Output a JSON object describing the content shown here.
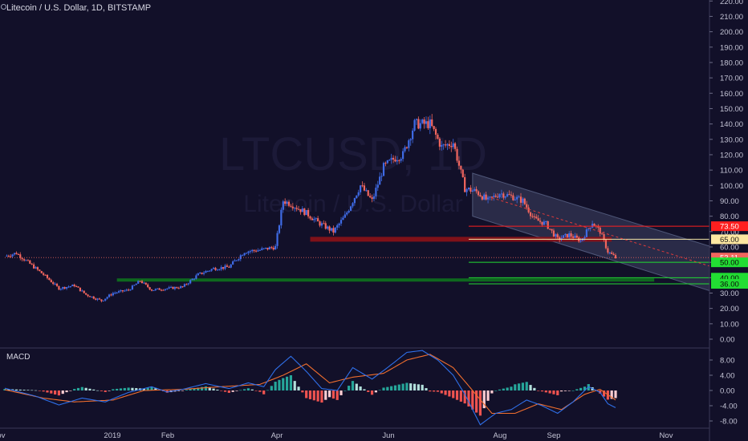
{
  "header": {
    "title": "Litecoin / U.S. Dollar, 1D, BITSTAMP",
    "watermark_symbol": "LTCUSD, 1D",
    "watermark_name": "Litecoin / U.S. Dollar"
  },
  "macd_label": "MACD",
  "colors": {
    "background": "#121029",
    "up_candle": "#3f6be6",
    "down_candle": "#f2665e",
    "resistance": "#ff1f1f",
    "support": "#22dd33",
    "highlight_line": "#f5e6a8",
    "channel": "#7f8fb8",
    "macd_line": "#2f6fe8",
    "signal_line": "#f06e2e"
  },
  "chart_data": [
    {
      "type": "candlestick",
      "title": "Litecoin / U.S. Dollar, 1D, BITSTAMP",
      "x_ticks": [
        "Nov",
        "2019",
        "Feb",
        "Apr",
        "Jun",
        "Aug",
        "Sep",
        "Nov"
      ],
      "y_ticks": [
        "220.00",
        "210.00",
        "200.00",
        "190.00",
        "180.00",
        "170.00",
        "160.00",
        "150.00",
        "140.00",
        "130.00",
        "120.00",
        "110.00",
        "100.00",
        "90.00",
        "80.00",
        "70.00",
        "60.00",
        "50.00",
        "40.00",
        "30.00",
        "20.00",
        "10.00",
        "0.00"
      ],
      "ylim": [
        -4,
        223
      ],
      "grid": false,
      "close_path": [
        {
          "t": 0,
          "v": 54
        },
        {
          "t": 3,
          "v": 56
        },
        {
          "t": 6,
          "v": 50
        },
        {
          "t": 10,
          "v": 42
        },
        {
          "t": 14,
          "v": 33
        },
        {
          "t": 18,
          "v": 35
        },
        {
          "t": 21,
          "v": 29
        },
        {
          "t": 25,
          "v": 25
        },
        {
          "t": 28,
          "v": 30
        },
        {
          "t": 32,
          "v": 32
        },
        {
          "t": 35,
          "v": 38
        },
        {
          "t": 38,
          "v": 32
        },
        {
          "t": 42,
          "v": 33
        },
        {
          "t": 46,
          "v": 34
        },
        {
          "t": 50,
          "v": 42
        },
        {
          "t": 54,
          "v": 46
        },
        {
          "t": 58,
          "v": 47
        },
        {
          "t": 62,
          "v": 57
        },
        {
          "t": 66,
          "v": 58
        },
        {
          "t": 70,
          "v": 60
        },
        {
          "t": 72,
          "v": 90
        },
        {
          "t": 74,
          "v": 88
        },
        {
          "t": 78,
          "v": 82
        },
        {
          "t": 81,
          "v": 76
        },
        {
          "t": 85,
          "v": 70
        },
        {
          "t": 88,
          "v": 80
        },
        {
          "t": 92,
          "v": 100
        },
        {
          "t": 95,
          "v": 90
        },
        {
          "t": 98,
          "v": 112
        },
        {
          "t": 101,
          "v": 118
        },
        {
          "t": 103,
          "v": 120
        },
        {
          "t": 106,
          "v": 140
        },
        {
          "t": 110,
          "v": 140
        },
        {
          "t": 113,
          "v": 125
        },
        {
          "t": 116,
          "v": 128
        },
        {
          "t": 119,
          "v": 98
        },
        {
          "t": 122,
          "v": 96
        },
        {
          "t": 125,
          "v": 90
        },
        {
          "t": 128,
          "v": 95
        },
        {
          "t": 131,
          "v": 93
        },
        {
          "t": 134,
          "v": 90
        },
        {
          "t": 137,
          "v": 78
        },
        {
          "t": 140,
          "v": 75
        },
        {
          "t": 143,
          "v": 65
        },
        {
          "t": 146,
          "v": 68
        },
        {
          "t": 149,
          "v": 64
        },
        {
          "t": 152,
          "v": 76
        },
        {
          "t": 154,
          "v": 70
        },
        {
          "t": 156,
          "v": 57
        },
        {
          "t": 158,
          "v": 53
        }
      ],
      "last_price": "53.11",
      "price_labels": [
        {
          "text": "73.50",
          "value": 73.5,
          "style": "resistance"
        },
        {
          "text": "65.00",
          "value": 65,
          "style": "highlight"
        },
        {
          "text": "53.11",
          "value": 53.11,
          "style": "last"
        },
        {
          "text": "50.00",
          "value": 50,
          "style": "support"
        },
        {
          "text": "40.00",
          "value": 40,
          "style": "support"
        },
        {
          "text": "36.00",
          "value": 36,
          "style": "support"
        }
      ],
      "levels": [
        {
          "value": 73.5,
          "t_start": 120,
          "kind": "resistance"
        },
        {
          "value": 65,
          "t_start": 120,
          "kind": "highlight"
        },
        {
          "value": 65,
          "t_start": 79,
          "t_end": 157,
          "kind": "zone"
        },
        {
          "value": 50,
          "t_start": 120,
          "kind": "support"
        },
        {
          "value": 40,
          "t_start": 120,
          "kind": "support"
        },
        {
          "value": 38.5,
          "t_start": 29,
          "t_end": 168,
          "kind": "support-dark"
        },
        {
          "value": 36,
          "t_start": 120,
          "kind": "support"
        },
        {
          "value": 53.11,
          "t_start": 0,
          "kind": "last"
        }
      ],
      "channel": {
        "upper": [
          {
            "t": 121,
            "v": 108
          },
          {
            "t": 183,
            "v": 60
          }
        ],
        "lower": [
          {
            "t": 121,
            "v": 80
          },
          {
            "t": 183,
            "v": 31
          }
        ]
      },
      "trend_dashed": [
        {
          "t": 126,
          "v": 92
        },
        {
          "t": 183,
          "v": 47
        }
      ]
    },
    {
      "type": "line",
      "title": "MACD",
      "y_ticks": [
        "8.00",
        "4.00",
        "0.00",
        "-4.00",
        "-8.00"
      ],
      "ylim": [
        -11,
        11
      ],
      "series": [
        {
          "role": "macd",
          "values": [
            {
              "t": 0,
              "v": 0.6
            },
            {
              "t": 8,
              "v": -1.5
            },
            {
              "t": 14,
              "v": -3.8
            },
            {
              "t": 20,
              "v": -2
            },
            {
              "t": 26,
              "v": -3
            },
            {
              "t": 32,
              "v": -0.5
            },
            {
              "t": 38,
              "v": 1
            },
            {
              "t": 42,
              "v": -0.4
            },
            {
              "t": 46,
              "v": 0.3
            },
            {
              "t": 52,
              "v": 1.8
            },
            {
              "t": 58,
              "v": 0.5
            },
            {
              "t": 63,
              "v": 2
            },
            {
              "t": 67,
              "v": 1
            },
            {
              "t": 70,
              "v": 5.5
            },
            {
              "t": 74,
              "v": 9
            },
            {
              "t": 78,
              "v": 5
            },
            {
              "t": 82,
              "v": 0.5
            },
            {
              "t": 86,
              "v": 0
            },
            {
              "t": 90,
              "v": 6
            },
            {
              "t": 95,
              "v": 3
            },
            {
              "t": 99,
              "v": 6
            },
            {
              "t": 104,
              "v": 10
            },
            {
              "t": 108,
              "v": 10.5
            },
            {
              "t": 112,
              "v": 8
            },
            {
              "t": 116,
              "v": 4
            },
            {
              "t": 119,
              "v": -1
            },
            {
              "t": 123,
              "v": -9
            },
            {
              "t": 127,
              "v": -6
            },
            {
              "t": 131,
              "v": -5
            },
            {
              "t": 135,
              "v": -2.5
            },
            {
              "t": 139,
              "v": -4
            },
            {
              "t": 143,
              "v": -6
            },
            {
              "t": 147,
              "v": -3
            },
            {
              "t": 151,
              "v": 1
            },
            {
              "t": 154,
              "v": -0.5
            },
            {
              "t": 156,
              "v": -3.5
            },
            {
              "t": 158,
              "v": -4.5
            }
          ]
        },
        {
          "role": "signal",
          "values": [
            {
              "t": 0,
              "v": 0.2
            },
            {
              "t": 10,
              "v": -2
            },
            {
              "t": 18,
              "v": -3
            },
            {
              "t": 28,
              "v": -2.5
            },
            {
              "t": 36,
              "v": 0
            },
            {
              "t": 46,
              "v": 0.3
            },
            {
              "t": 56,
              "v": 1
            },
            {
              "t": 66,
              "v": 1.6
            },
            {
              "t": 72,
              "v": 4
            },
            {
              "t": 78,
              "v": 7
            },
            {
              "t": 84,
              "v": 2
            },
            {
              "t": 90,
              "v": 3.5
            },
            {
              "t": 98,
              "v": 4.5
            },
            {
              "t": 104,
              "v": 8
            },
            {
              "t": 110,
              "v": 9.5
            },
            {
              "t": 116,
              "v": 6
            },
            {
              "t": 121,
              "v": 0
            },
            {
              "t": 126,
              "v": -6
            },
            {
              "t": 132,
              "v": -6
            },
            {
              "t": 138,
              "v": -3.5
            },
            {
              "t": 144,
              "v": -5
            },
            {
              "t": 150,
              "v": -1
            },
            {
              "t": 154,
              "v": 0.3
            },
            {
              "t": 158,
              "v": -2.5
            }
          ]
        }
      ]
    }
  ]
}
